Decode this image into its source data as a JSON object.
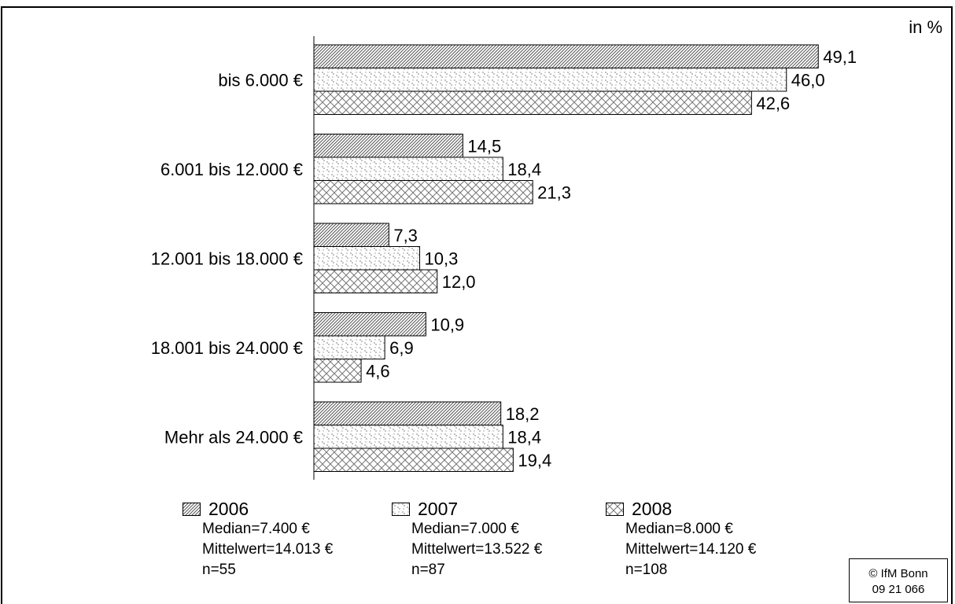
{
  "unit_label": "in %",
  "chart_data": {
    "type": "bar",
    "orientation": "horizontal",
    "categories": [
      "bis 6.000 €",
      "6.001 bis 12.000 €",
      "12.001 bis 18.000 €",
      "18.001 bis 24.000 €",
      "Mehr als 24.000 €"
    ],
    "series": [
      {
        "name": "2006",
        "values": [
          49.1,
          14.5,
          7.3,
          10.9,
          18.2
        ],
        "labels": [
          "49,1",
          "14,5",
          "7,3",
          "10,9",
          "18,2"
        ],
        "pattern": "diagonal-hatch"
      },
      {
        "name": "2007",
        "values": [
          46.0,
          18.4,
          10.3,
          6.9,
          18.4
        ],
        "labels": [
          "46,0",
          "18,4",
          "10,3",
          "6,9",
          "18,4"
        ],
        "pattern": "dotted"
      },
      {
        "name": "2008",
        "values": [
          42.6,
          21.3,
          12.0,
          4.6,
          19.4
        ],
        "labels": [
          "42,6",
          "21,3",
          "12,0",
          "4,6",
          "19,4"
        ],
        "pattern": "cross-hatch"
      }
    ],
    "xlim": [
      0,
      50
    ],
    "grid": false,
    "legend_position": "bottom"
  },
  "legend": [
    {
      "year": "2006",
      "median": "Median=7.400 €",
      "mean": "Mittelwert=14.013 €",
      "n": "n=55"
    },
    {
      "year": "2007",
      "median": "Median=7.000 €",
      "mean": "Mittelwert=13.522 €",
      "n": "n=87"
    },
    {
      "year": "2008",
      "median": "Median=8.000 €",
      "mean": "Mittelwert=14.120 €",
      "n": "n=108"
    }
  ],
  "copyright": {
    "line1": "© IfM Bonn",
    "line2": "09 21 066"
  }
}
